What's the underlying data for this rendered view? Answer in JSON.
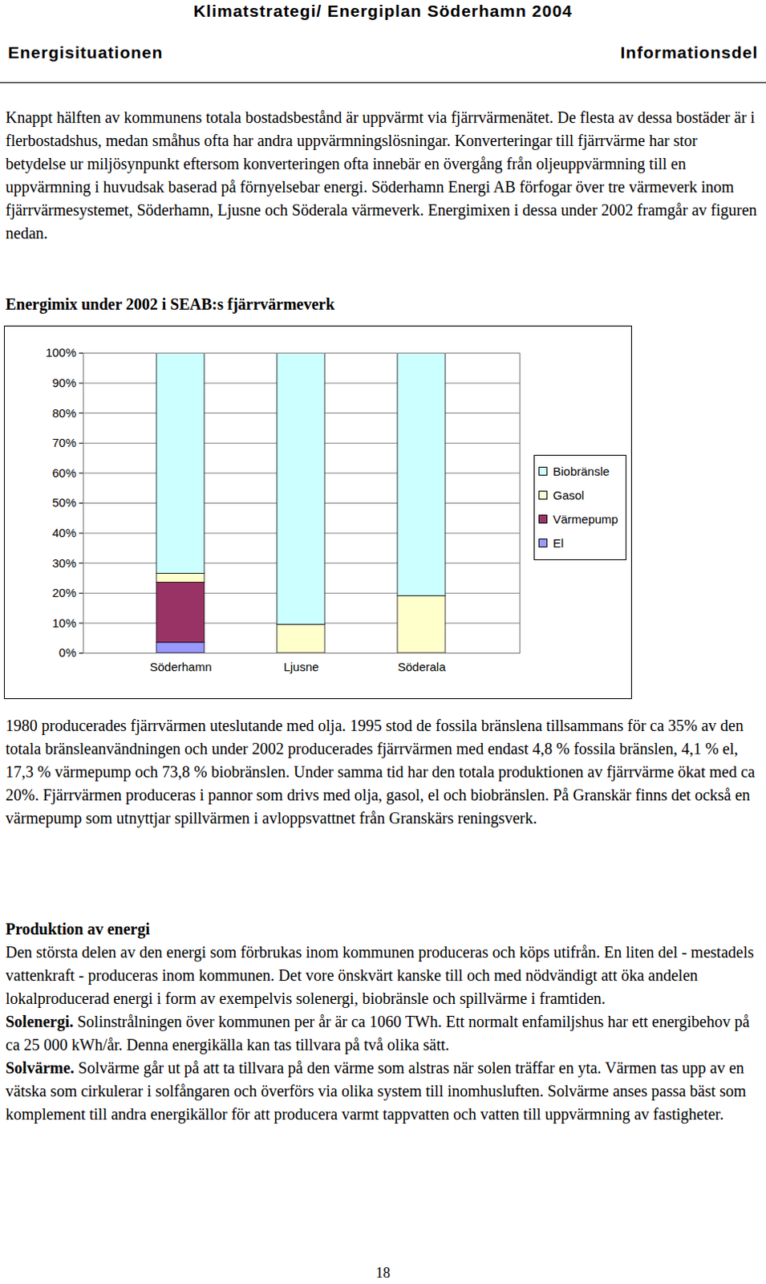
{
  "header": {
    "title": "Klimatstrategi/ Energiplan Söderhamn 2004",
    "left": "Energisituationen",
    "right": "Informationsdel"
  },
  "paragraphs_before": [
    "Knappt hälften av kommunens totala bostadsbestånd är uppvärmt via fjärrvärmenätet. De flesta av dessa bostäder är i flerbostadshus, medan småhus ofta har andra uppvärmningslösningar. Konverteringar till fjärrvärme har stor betydelse ur miljösynpunkt eftersom konverteringen ofta innebär en övergång från oljeuppvärmning till en uppvärmning i huvudsak baserad på förnyelsebar energi. Söderhamn Energi AB förfogar över tre värmeverk inom fjärrvärmesystemet, Söderhamn, Ljusne och Söderala värmeverk. Energimixen i dessa under 2002 framgår av figuren nedan."
  ],
  "chart_data": {
    "type": "bar",
    "title": "Energimix under 2002 i SEAB:s fjärrvärmeverk",
    "stacked": true,
    "categories": [
      "Söderhamn",
      "Ljusne",
      "Söderala"
    ],
    "series": [
      {
        "name": "Biobränsle",
        "color": "#ccffff",
        "values": [
          73.5,
          90.5,
          81
        ]
      },
      {
        "name": "Gasol",
        "color": "#ffffcc",
        "values": [
          3,
          9.5,
          19
        ]
      },
      {
        "name": "Värmepump",
        "color": "#993366",
        "values": [
          20,
          0,
          0
        ]
      },
      {
        "name": "El",
        "color": "#9999ff",
        "values": [
          3.5,
          0,
          0
        ]
      }
    ],
    "ylim": [
      0,
      100
    ],
    "yticks": [
      {
        "value": 0,
        "label": "0%"
      },
      {
        "value": 10,
        "label": "10%"
      },
      {
        "value": 20,
        "label": "20%"
      },
      {
        "value": 30,
        "label": "30%"
      },
      {
        "value": 40,
        "label": "40%"
      },
      {
        "value": 50,
        "label": "50%"
      },
      {
        "value": 60,
        "label": "60%"
      },
      {
        "value": 70,
        "label": "70%"
      },
      {
        "value": 80,
        "label": "80%"
      },
      {
        "value": 90,
        "label": "90%"
      },
      {
        "value": 100,
        "label": "100%"
      }
    ],
    "grid": true,
    "legend": "right"
  },
  "paragraphs_after": [
    "1980 producerades fjärrvärmen uteslutande med olja. 1995 stod de fossila bränslena tillsammans för ca 35% av den totala bränsleanvändningen och under 2002 producerades fjärrvärmen med endast 4,8 % fossila bränslen, 4,1 % el, 17,3 % värmepump och 73,8 % biobränslen. Under samma tid har den totala produktionen av fjärrvärme ökat med ca 20%. Fjärrvärmen produceras i pannor som drivs med olja, gasol, el och biobränslen. På Granskär finns det också en värmepump som utnyttjar spillvärmen i avloppsvattnet från Granskärs reningsverk."
  ],
  "section": {
    "heading": "Produktion av energi",
    "paragraphs": [
      {
        "text": "Den största delen av den energi som förbrukas inom kommunen produceras och köps utifrån. En liten del - mestadels vattenkraft - produceras inom kommunen. Det vore önskvärt kanske till och med nödvändigt att öka andelen lokalproducerad energi i form av exempelvis solenergi, biobränsle och spillvärme i framtiden."
      },
      {
        "lead": "Solenergi.",
        "text": "Solinstrålningen över kommunen per år är ca 1060 TWh. Ett normalt enfamiljshus har ett energibehov på ca 25 000 kWh/år. Denna energikälla kan tas tillvara på två olika sätt."
      },
      {
        "lead": "Solvärme.",
        "text": "Solvärme går ut på att ta tillvara på den värme som alstras när solen träffar en yta. Värmen tas upp av en vätska som cirkulerar i solfångaren och överförs via olika system till inomhusluften. Solvärme anses passa bäst som komplement till andra energikällor för att producera varmt tappvatten och vatten till uppvärmning av fastigheter."
      }
    ]
  },
  "page_number": "18"
}
